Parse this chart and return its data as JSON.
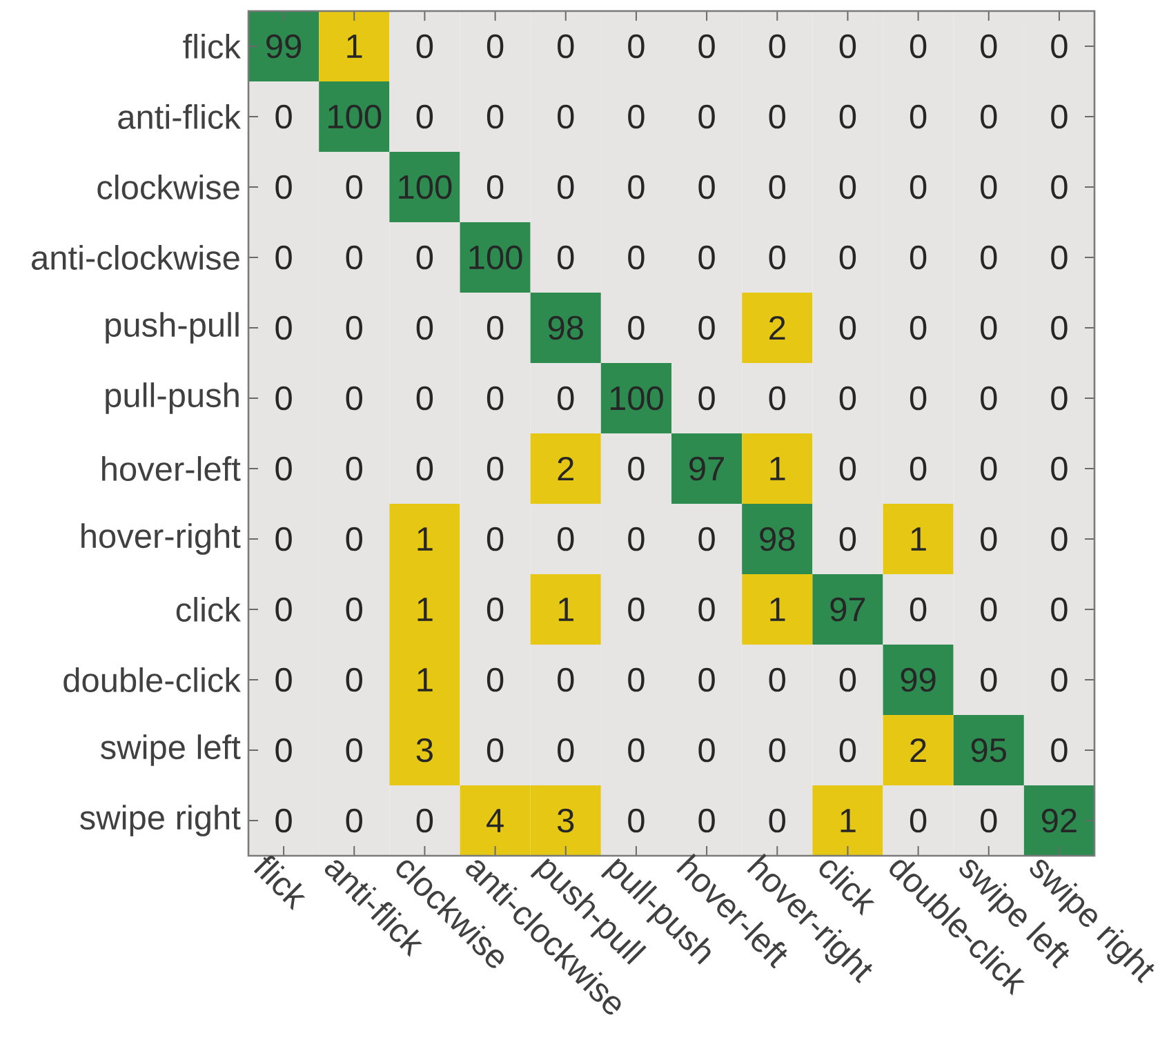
{
  "chart_data": {
    "type": "heatmap",
    "categories": [
      "flick",
      "anti-flick",
      "clockwise",
      "anti-clockwise",
      "push-pull",
      "pull-push",
      "hover-left",
      "hover-right",
      "click",
      "double-click",
      "swipe left",
      "swipe right"
    ],
    "y_categories": [
      "flick",
      "anti-flick",
      "clockwise",
      "anti-clockwise",
      "push-pull",
      "pull-push",
      "hover-left",
      "hover-right",
      "click",
      "double-click",
      "swipe left",
      "swipe right"
    ],
    "cells": [
      [
        99,
        1,
        0,
        0,
        0,
        0,
        0,
        0,
        0,
        0,
        0,
        0
      ],
      [
        0,
        100,
        0,
        0,
        0,
        0,
        0,
        0,
        0,
        0,
        0,
        0
      ],
      [
        0,
        0,
        100,
        0,
        0,
        0,
        0,
        0,
        0,
        0,
        0,
        0
      ],
      [
        0,
        0,
        0,
        100,
        0,
        0,
        0,
        0,
        0,
        0,
        0,
        0
      ],
      [
        0,
        0,
        0,
        0,
        98,
        0,
        0,
        2,
        0,
        0,
        0,
        0
      ],
      [
        0,
        0,
        0,
        0,
        0,
        100,
        0,
        0,
        0,
        0,
        0,
        0
      ],
      [
        0,
        0,
        0,
        0,
        2,
        0,
        97,
        1,
        0,
        0,
        0,
        0
      ],
      [
        0,
        0,
        1,
        0,
        0,
        0,
        0,
        98,
        0,
        1,
        0,
        0
      ],
      [
        0,
        0,
        1,
        0,
        1,
        0,
        0,
        1,
        97,
        0,
        0,
        0
      ],
      [
        0,
        0,
        1,
        0,
        0,
        0,
        0,
        0,
        0,
        99,
        0,
        0
      ],
      [
        0,
        0,
        3,
        0,
        0,
        0,
        0,
        0,
        0,
        2,
        95,
        0
      ],
      [
        0,
        0,
        0,
        4,
        3,
        0,
        0,
        0,
        1,
        0,
        0,
        92
      ]
    ],
    "colors": [
      [
        "#2e8b50",
        "#e6c814",
        "#e6e5e3",
        "#e6e5e3",
        "#e6e5e3",
        "#e6e5e3",
        "#e6e5e3",
        "#e6e5e3",
        "#e6e5e3",
        "#e6e5e3",
        "#e6e5e3",
        "#e6e5e3"
      ],
      [
        "#e6e5e3",
        "#2e8b50",
        "#e6e5e3",
        "#e6e5e3",
        "#e6e5e3",
        "#e6e5e3",
        "#e6e5e3",
        "#e6e5e3",
        "#e6e5e3",
        "#e6e5e3",
        "#e6e5e3",
        "#e6e5e3"
      ],
      [
        "#e6e5e3",
        "#e6e5e3",
        "#2e8b50",
        "#e6e5e3",
        "#e6e5e3",
        "#e6e5e3",
        "#e6e5e3",
        "#e6e5e3",
        "#e6e5e3",
        "#e6e5e3",
        "#e6e5e3",
        "#e6e5e3"
      ],
      [
        "#e6e5e3",
        "#e6e5e3",
        "#e6e5e3",
        "#2e8b50",
        "#e6e5e3",
        "#e6e5e3",
        "#e6e5e3",
        "#e6e5e3",
        "#e6e5e3",
        "#e6e5e3",
        "#e6e5e3",
        "#e6e5e3"
      ],
      [
        "#e6e5e3",
        "#e6e5e3",
        "#e6e5e3",
        "#e6e5e3",
        "#2e8b50",
        "#e6e5e3",
        "#e6e5e3",
        "#e6c814",
        "#e6e5e3",
        "#e6e5e3",
        "#e6e5e3",
        "#e6e5e3"
      ],
      [
        "#e6e5e3",
        "#e6e5e3",
        "#e6e5e3",
        "#e6e5e3",
        "#e6e5e3",
        "#2e8b50",
        "#e6e5e3",
        "#e6e5e3",
        "#e6e5e3",
        "#e6e5e3",
        "#e6e5e3",
        "#e6e5e3"
      ],
      [
        "#e6e5e3",
        "#e6e5e3",
        "#e6e5e3",
        "#e6e5e3",
        "#e6c814",
        "#e6e5e3",
        "#2e8b50",
        "#e6c814",
        "#e6e5e3",
        "#e6e5e3",
        "#e6e5e3",
        "#e6e5e3"
      ],
      [
        "#e6e5e3",
        "#e6e5e3",
        "#e6c814",
        "#e6e5e3",
        "#e6e5e3",
        "#e6e5e3",
        "#e6e5e3",
        "#2e8b50",
        "#e6e5e3",
        "#e6c814",
        "#e6e5e3",
        "#e6e5e3"
      ],
      [
        "#e6e5e3",
        "#e6e5e3",
        "#e6c814",
        "#e6e5e3",
        "#e6c814",
        "#e6e5e3",
        "#e6e5e3",
        "#e6c814",
        "#2e8b50",
        "#e6e5e3",
        "#e6e5e3",
        "#e6e5e3"
      ],
      [
        "#e6e5e3",
        "#e6e5e3",
        "#e6c814",
        "#e6e5e3",
        "#e6e5e3",
        "#e6e5e3",
        "#e6e5e3",
        "#e6e5e3",
        "#e6e5e3",
        "#2e8b50",
        "#e6e5e3",
        "#e6e5e3"
      ],
      [
        "#e6e5e3",
        "#e6e5e3",
        "#e6c814",
        "#e6e5e3",
        "#e6e5e3",
        "#e6e5e3",
        "#e6e5e3",
        "#e6e5e3",
        "#e6e5e3",
        "#e6c814",
        "#2e8b50",
        "#e6e5e3"
      ],
      [
        "#e6e5e3",
        "#e6e5e3",
        "#e6e5e3",
        "#e6c814",
        "#e6c814",
        "#e6e5e3",
        "#e6e5e3",
        "#e6e5e3",
        "#e6c814",
        "#e6e5e3",
        "#e6e5e3",
        "#2e8b50"
      ]
    ],
    "data_labels": true
  }
}
